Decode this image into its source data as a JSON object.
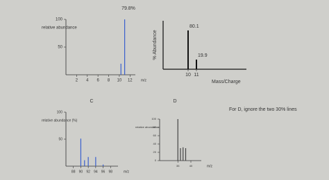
{
  "chart_data": [
    {
      "type": "bar",
      "title": "79.8%",
      "ylabel": "relative abundance",
      "xlabel": "m/z",
      "x": [
        10.3,
        11
      ],
      "values": [
        20,
        100
      ],
      "color": "#3a5fcd",
      "xlim": [
        0,
        13
      ],
      "xticks": [
        2,
        4,
        6,
        8,
        10,
        12
      ],
      "ylim": [
        0,
        100
      ],
      "yticks": [
        50,
        100
      ]
    },
    {
      "type": "bar",
      "ylabel": "% Abundance",
      "xlabel": "Mass/Charge",
      "x": [
        10,
        11
      ],
      "values": [
        80.1,
        19.9
      ],
      "color": "#111111",
      "xlim": [
        7,
        17
      ],
      "xticks": [
        10,
        11
      ],
      "ylim": [
        0,
        100
      ]
    },
    {
      "type": "bar",
      "title": "C",
      "ylabel": "relative abundance (%)",
      "xlabel": "m/z",
      "x": [
        90,
        91,
        92,
        94,
        96
      ],
      "values": [
        51,
        11,
        17,
        17,
        3
      ],
      "color": "#3a5fcd",
      "xlim": [
        86,
        100
      ],
      "xticks": [
        88,
        90,
        92,
        94,
        96,
        98
      ],
      "ylim": [
        0,
        100
      ],
      "yticks": [
        50,
        100
      ]
    },
    {
      "type": "bar",
      "title": "D",
      "ylabel": "relative abundance",
      "xlabel": "m/z",
      "x": [
        35,
        36,
        37,
        38
      ],
      "values": [
        100,
        30,
        32,
        30
      ],
      "color": "#444444",
      "xlim": [
        28,
        44
      ],
      "xticks": [
        35,
        40
      ],
      "ylim": [
        0,
        100
      ],
      "yticks": [
        0,
        20,
        40,
        60,
        80,
        100
      ]
    }
  ],
  "note": "For D, ignore the two 30% lines"
}
